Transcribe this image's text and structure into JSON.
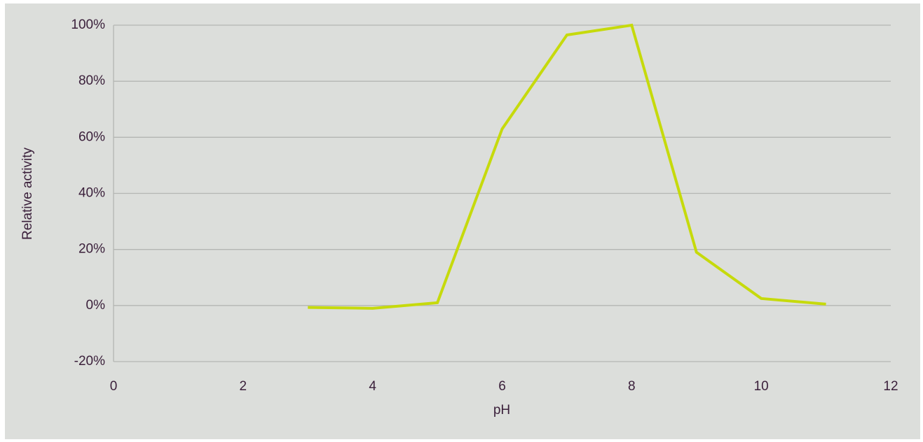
{
  "chart_data": {
    "type": "line",
    "x_label": "pH",
    "y_label": "Relative activity",
    "x": [
      3,
      4,
      5,
      6,
      7,
      8,
      9,
      10,
      11
    ],
    "series": [
      {
        "name": "Relative activity",
        "color": "#c6da0c",
        "values": [
          -0.7,
          -1,
          1,
          63,
          96.5,
          100,
          19,
          2.5,
          0.5
        ]
      }
    ],
    "xlim": [
      0,
      12
    ],
    "xticks": [
      0,
      2,
      4,
      6,
      8,
      10,
      12
    ],
    "ylim": [
      -20,
      100
    ],
    "yticks": [
      {
        "value": -20,
        "label": "-20%"
      },
      {
        "value": 0,
        "label": "0%"
      },
      {
        "value": 20,
        "label": "20%"
      },
      {
        "value": 40,
        "label": "40%"
      },
      {
        "value": 60,
        "label": "60%"
      },
      {
        "value": 80,
        "label": "80%"
      },
      {
        "value": 100,
        "label": "100%"
      }
    ],
    "grid": true
  }
}
